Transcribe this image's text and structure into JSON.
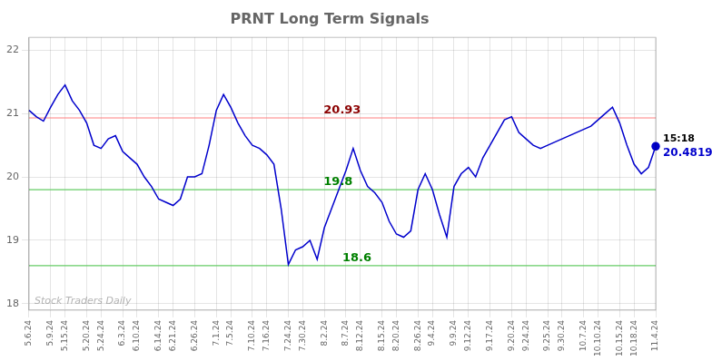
{
  "chart_data": {
    "type": "line",
    "title": "PRNT Long Term Signals",
    "watermark": "Stock Traders Daily",
    "categories": [
      "5.6.24",
      null,
      null,
      "5.9.24",
      null,
      "5.15.24",
      null,
      null,
      "5.20.24",
      null,
      "5.24.24",
      null,
      null,
      "6.3.24",
      null,
      "6.10.24",
      null,
      null,
      "6.14.24",
      null,
      "6.21.24",
      null,
      null,
      "6.26.24",
      null,
      null,
      "7.1.24",
      null,
      "7.5.24",
      null,
      null,
      "7.10.24",
      null,
      "7.16.24",
      null,
      null,
      "7.24.24",
      null,
      "7.30.24",
      null,
      null,
      "8.2.24",
      null,
      null,
      "8.7.24",
      null,
      "8.12.24",
      null,
      null,
      "8.15.24",
      null,
      "8.20.24",
      null,
      null,
      "8.26.24",
      null,
      "9.4.24",
      null,
      null,
      "9.9.24",
      null,
      "9.12.24",
      null,
      null,
      "9.17.24",
      null,
      null,
      "9.20.24",
      null,
      "9.24.24",
      null,
      null,
      "9.25.24",
      null,
      "9.30.24",
      null,
      null,
      "10.7.24",
      null,
      "10.10.24",
      null,
      null,
      "10.15.24",
      null,
      "10.18.24",
      null,
      null,
      "11.4.24"
    ],
    "series": [
      {
        "color": "#0000cc",
        "values": [
          21.05,
          20.95,
          20.88,
          21.1,
          21.3,
          21.45,
          21.2,
          21.05,
          20.85,
          20.5,
          20.45,
          20.6,
          20.65,
          20.4,
          20.3,
          20.2,
          20.0,
          19.85,
          19.65,
          19.6,
          19.55,
          19.65,
          20.0,
          20.0,
          20.05,
          20.5,
          21.05,
          21.3,
          21.1,
          20.85,
          20.65,
          20.5,
          20.45,
          20.35,
          20.2,
          19.5,
          18.62,
          18.85,
          18.9,
          19.0,
          18.7,
          19.2,
          19.5,
          19.8,
          20.1,
          20.45,
          20.1,
          19.85,
          19.75,
          19.6,
          19.3,
          19.1,
          19.05,
          19.15,
          19.8,
          20.05,
          19.8,
          19.4,
          19.05,
          19.85,
          20.05,
          20.15,
          20.0,
          20.3,
          20.5,
          20.7,
          20.9,
          20.95,
          20.7,
          20.6,
          20.5,
          20.45,
          20.5,
          20.55,
          20.6,
          20.65,
          20.7,
          20.75,
          20.8,
          20.9,
          21.0,
          21.1,
          20.85,
          20.5,
          20.2,
          20.05,
          20.15,
          20.4819
        ],
        "end_point": {
          "color": "#0000cc",
          "labels": [
            "15:18",
            "20.4819"
          ]
        }
      }
    ],
    "reference_lines": [
      {
        "value": 20.93,
        "label": "20.93",
        "color": "#ff8080",
        "label_color": "darkred"
      },
      {
        "value": 19.8,
        "label": "19.8",
        "color": "#66cc66",
        "label_color": "green"
      },
      {
        "value": 18.6,
        "label": "18.6",
        "color": "#66cc66",
        "label_color": "green"
      }
    ],
    "ylim": [
      17.9,
      22.2
    ],
    "yticks": [
      18,
      19,
      20,
      21,
      22
    ],
    "grid": true
  }
}
